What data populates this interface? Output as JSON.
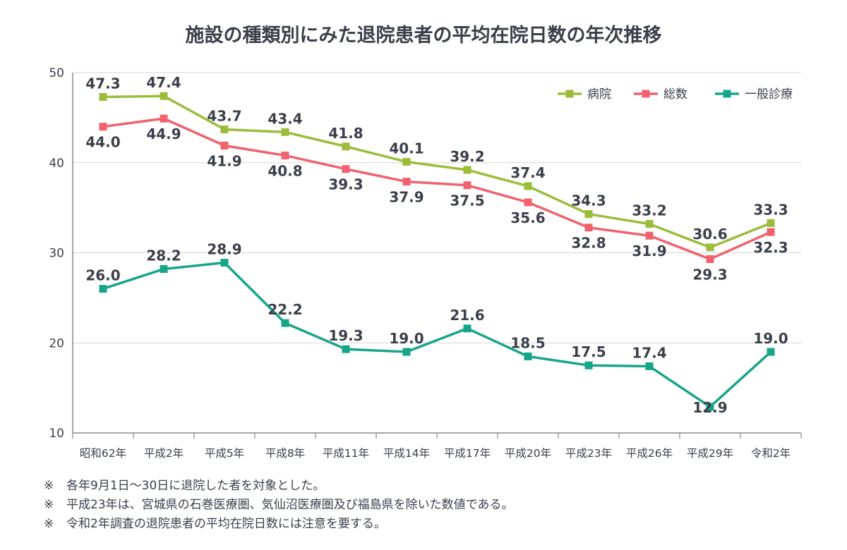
{
  "chart_data": {
    "type": "line",
    "title": "施設の種類別にみた退院患者の平均在院日数の年次推移",
    "categories": [
      "昭和62年",
      "平成2年",
      "平成5年",
      "平成8年",
      "平成11年",
      "平成14年",
      "平成17年",
      "平成20年",
      "平成23年",
      "平成26年",
      "平成29年",
      "令和2年"
    ],
    "ylim": [
      10,
      50
    ],
    "yticks": [
      10,
      20,
      30,
      40,
      50
    ],
    "grid": true,
    "legend_position": "top-right",
    "series": [
      {
        "name": "病院",
        "color": "#9bbd3a",
        "values": [
          47.3,
          47.4,
          43.7,
          43.4,
          41.8,
          40.1,
          39.2,
          37.4,
          34.3,
          33.2,
          30.6,
          33.3
        ]
      },
      {
        "name": "総数",
        "color": "#f0626e",
        "values": [
          44.0,
          44.9,
          41.9,
          40.8,
          39.3,
          37.9,
          37.5,
          35.6,
          32.8,
          31.9,
          29.3,
          32.3
        ]
      },
      {
        "name": "一般診療",
        "color": "#17a58a",
        "values": [
          26.0,
          28.2,
          28.9,
          22.2,
          19.3,
          19.0,
          21.6,
          18.5,
          17.5,
          17.4,
          12.9,
          19.0
        ]
      }
    ]
  },
  "notes": [
    {
      "mark": "※",
      "text": "各年9月1日〜30日に退院した者を対象とした。"
    },
    {
      "mark": "※",
      "text": "平成23年は、宮城県の石巻医療圏、気仙沼医療圏及び福島県を除いた数値である。"
    },
    {
      "mark": "※",
      "text": "令和2年調査の退院患者の平均在院日数には注意を要する。"
    }
  ]
}
